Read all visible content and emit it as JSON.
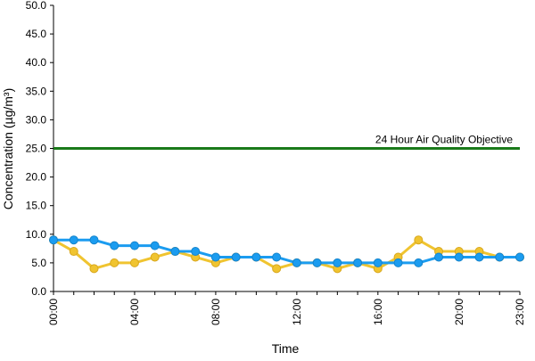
{
  "chart_data": {
    "type": "line",
    "xlabel": "Time",
    "ylabel": "Concentration (µg/m³)",
    "x": [
      "00:00",
      "01:00",
      "02:00",
      "03:00",
      "04:00",
      "05:00",
      "06:00",
      "07:00",
      "08:00",
      "09:00",
      "10:00",
      "11:00",
      "12:00",
      "13:00",
      "14:00",
      "15:00",
      "16:00",
      "17:00",
      "18:00",
      "19:00",
      "20:00",
      "21:00",
      "22:00",
      "23:00"
    ],
    "x_tick_labels": [
      "00:00",
      "04:00",
      "08:00",
      "12:00",
      "16:00",
      "20:00",
      "23:00"
    ],
    "y_tick_labels": [
      "0.0",
      "5.0",
      "10.0",
      "15.0",
      "20.0",
      "25.0",
      "30.0",
      "35.0",
      "40.0",
      "45.0",
      "50.0"
    ],
    "ylim": [
      0,
      50
    ],
    "grid": false,
    "series": [
      {
        "color": "#f0c430",
        "values": [
          9,
          7,
          4,
          5,
          5,
          6,
          7,
          6,
          5,
          6,
          6,
          4,
          5,
          5,
          4,
          5,
          4,
          6,
          9,
          7,
          7,
          7,
          6,
          6
        ]
      },
      {
        "color": "#1b9cf0",
        "values": [
          9,
          9,
          9,
          8,
          8,
          8,
          7,
          7,
          6,
          6,
          6,
          6,
          5,
          5,
          5,
          5,
          5,
          5,
          5,
          6,
          6,
          6,
          6,
          6
        ]
      }
    ],
    "reference_line": {
      "label": "24 Hour Air Quality Objective",
      "value": 25,
      "color": "#1a7a1a"
    }
  }
}
